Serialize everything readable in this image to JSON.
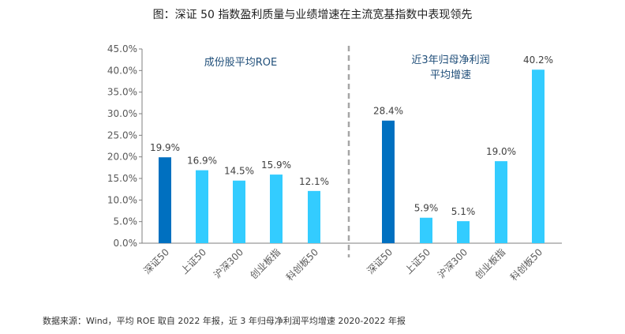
{
  "title": "图：深证 50 指数盈利质量与业绩增速在主流宽基指数中表现领先",
  "source": "数据来源：Wind，平均 ROE 取自 2022 年报，近 3 年归母净利润平均增速 2020-2022 年报",
  "colors": {
    "primary": "#0070C0",
    "secondary": "#33CCFF",
    "axis": "#7F7F7F",
    "annotation": "#1F4E79",
    "divider": "#A6A6A6"
  },
  "chart_data": {
    "type": "bar",
    "ylim": [
      0,
      45
    ],
    "yticks": [
      "0.0%",
      "5.0%",
      "10.0%",
      "15.0%",
      "20.0%",
      "25.0%",
      "30.0%",
      "35.0%",
      "40.0%",
      "45.0%"
    ],
    "groups": [
      {
        "label": "成份股平均ROE",
        "categories": [
          "深证50",
          "上证50",
          "沪深300",
          "创业板指",
          "科创板50"
        ],
        "values": [
          19.9,
          16.9,
          14.5,
          15.9,
          12.1
        ],
        "value_labels": [
          "19.9%",
          "16.9%",
          "14.5%",
          "15.9%",
          "12.1%"
        ]
      },
      {
        "label_lines": [
          "近3年归母净利润",
          "平均增速"
        ],
        "categories": [
          "深证50",
          "上证50",
          "沪深300",
          "创业板指",
          "科创板50"
        ],
        "values": [
          28.4,
          5.9,
          5.1,
          19.0,
          40.2
        ],
        "value_labels": [
          "28.4%",
          "5.9%",
          "5.1%",
          "19.0%",
          "40.2%"
        ]
      }
    ]
  }
}
